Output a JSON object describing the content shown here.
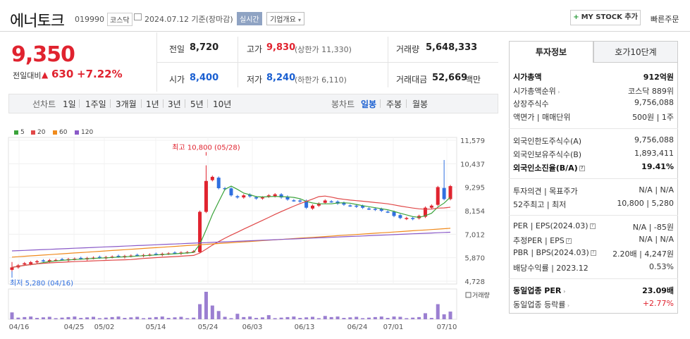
{
  "header": {
    "name": "에너토크",
    "code": "019990",
    "market": "코스닥",
    "date": "2024.07.12  기준(장마감)",
    "realtime": "실시간",
    "overview": "기업개요",
    "mystock_btn": "MY STOCK 추가",
    "quick_order": "빠른주문"
  },
  "price": {
    "now": "9,350",
    "sub_label": "전일대비",
    "change": "630",
    "rate": "+7.22%"
  },
  "quote": {
    "prev_label": "전일",
    "prev": "8,720",
    "high_label": "고가",
    "high": "9,830",
    "high_note": "(상한가 11,330)",
    "volume_label": "거래량",
    "volume": "5,648,333",
    "open_label": "시가",
    "open": "8,400",
    "low_label": "저가",
    "low": "8,240",
    "low_note": "(하한가 6,110)",
    "amount_label": "거래대금",
    "amount": "52,669",
    "amount_unit": "백만"
  },
  "period_bar": {
    "line_label": "선차트",
    "line_periods": [
      "1일",
      "1주일",
      "3개월",
      "1년",
      "3년",
      "5년",
      "10년"
    ],
    "candle_label": "봉차트",
    "candle_periods": [
      "일봉",
      "주봉",
      "월봉"
    ],
    "candle_selected": "일봉"
  },
  "legend": [
    {
      "label": "5",
      "color": "#3aa33a"
    },
    {
      "label": "20",
      "color": "#e04848"
    },
    {
      "label": "60",
      "color": "#f08a1c"
    },
    {
      "label": "120",
      "color": "#8a5ac8"
    }
  ],
  "chart_data": {
    "type": "candlestick",
    "y_ticks": [
      "11,579",
      "10,437",
      "9,295",
      "8,154",
      "7,012",
      "5,870",
      "4,728"
    ],
    "x_ticks": [
      "04/16",
      "04/25",
      "05/02",
      "05/14",
      "05/24",
      "06/03",
      "06/13",
      "06/24",
      "07/01",
      "07/10"
    ],
    "high_label": "최고 10,800 (05/28)",
    "low_label": "최저 5,280 (04/16)",
    "volume_label": "거래량",
    "close_series": [
      5400,
      5500,
      5600,
      5650,
      5700,
      5720,
      5750,
      5760,
      5780,
      5800,
      5820,
      5830,
      5850,
      5870,
      5880,
      5900,
      5920,
      5930,
      5950,
      5970,
      5990,
      6000,
      6020,
      6040,
      6060,
      6080,
      6100,
      6120,
      6140,
      6180,
      8100,
      9600,
      9800,
      9250,
      9200,
      8900,
      8800,
      8900,
      8850,
      8750,
      8800,
      8900,
      8950,
      8800,
      8700,
      8650,
      8600,
      8300,
      8400,
      8500,
      8650,
      8600,
      8500,
      8450,
      8400,
      8350,
      8300,
      8250,
      8200,
      8150,
      8100,
      7900,
      7800,
      7800,
      7750,
      7900,
      8300,
      8400,
      9300,
      8720,
      9350
    ],
    "ma_periods": [
      "5",
      "20",
      "60",
      "120"
    ]
  },
  "panel": {
    "tab_invest": "투자정보",
    "tab_hoga": "호가10단계",
    "rows": [
      {
        "label": "시가총액",
        "value": "912억원",
        "bold": true
      },
      {
        "label": "시가총액순위",
        "value": "코스닥 889위"
      },
      {
        "label": "상장주식수",
        "value": "9,756,088"
      },
      {
        "label": "액면가 | 매매단위",
        "value": "500원 | 1주"
      },
      {
        "label": "외국인한도주식수(A)",
        "value": "9,756,088"
      },
      {
        "label": "외국인보유주식수(B)",
        "value": "1,893,411"
      },
      {
        "label": "외국인소진율(B/A)",
        "value": "19.41%",
        "bold": true
      },
      {
        "label": "투자의견 | 목표주가",
        "value": "N/A | N/A"
      },
      {
        "label": "52주최고 | 최저",
        "value": "10,800 | 5,280"
      },
      {
        "label": "PER | EPS(2024.03)",
        "value": "N/A | -85원"
      },
      {
        "label": "추정PER | EPS",
        "value": "N/A | N/A"
      },
      {
        "label": "PBR | BPS(2024.03)",
        "value": "2.20배 | 4,247원"
      },
      {
        "label": "배당수익률 | 2023.12",
        "value": "0.53%"
      },
      {
        "label": "동일업종 PER",
        "value": "23.09배",
        "bold": true
      },
      {
        "label": "동일업종 등락률",
        "value": "+2.77%",
        "red": true
      }
    ]
  }
}
